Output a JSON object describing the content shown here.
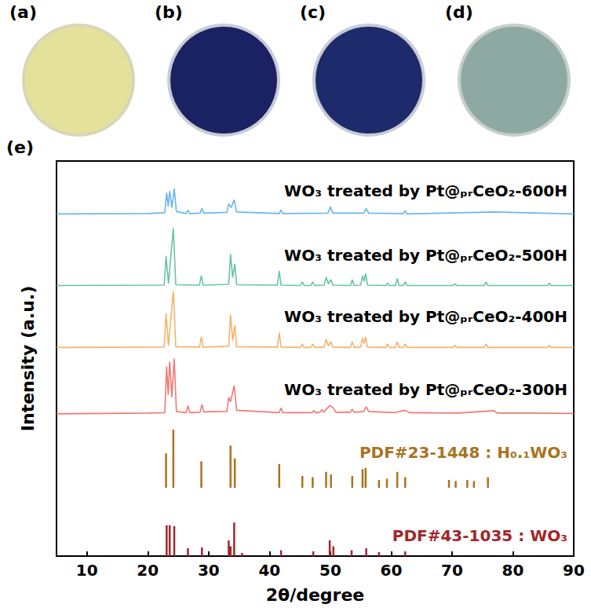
{
  "photos": [
    "(a)",
    "(b)",
    "(c)",
    "(d)"
  ],
  "chart_data": {
    "type": "line",
    "label": "(e)",
    "x_label": "2θ/degree",
    "y_label": "Intensity (a.u.)",
    "xlim": [
      5,
      90
    ],
    "xticks": [
      10,
      20,
      30,
      40,
      50,
      60,
      70,
      80,
      90
    ],
    "ylim": [
      0,
      100
    ],
    "tick_labels": "x",
    "grid": false,
    "series": [
      {
        "name": "WO₃ treated by Pt@ₚᵣCeO₂-600H",
        "type": "line",
        "color": "#6cb6ea",
        "x": [
          5,
          20,
          22.8,
          23.1,
          23.35,
          23.6,
          23.95,
          24.35,
          24.7,
          26.3,
          26.6,
          26.9,
          28.6,
          28.9,
          29.2,
          33.0,
          33.3,
          33.7,
          34.2,
          34.6,
          41.6,
          41.9,
          42.2,
          49.6,
          50.0,
          50.4,
          55.5,
          55.9,
          56.3,
          62.0,
          62.3,
          62.6,
          77,
          90
        ],
        "values": [
          86.6,
          86.7,
          86.9,
          92,
          88.5,
          92.4,
          88.2,
          93,
          87.2,
          86.7,
          87.6,
          86.7,
          86.8,
          88,
          86.8,
          87,
          89.2,
          88.2,
          90.2,
          87.1,
          86.7,
          87.6,
          86.7,
          86.8,
          88.4,
          86.8,
          86.8,
          88,
          86.8,
          86.7,
          87.4,
          86.6,
          87.1,
          86.6
        ]
      },
      {
        "name": "WO₃ treated by Pt@ₚᵣCeO₂-500H",
        "type": "line",
        "color": "#66c4a6",
        "x": [
          5,
          22.7,
          23.0,
          23.4,
          24.2,
          24.6,
          28.5,
          28.8,
          29.1,
          33.3,
          33.6,
          33.95,
          34.3,
          34.6,
          41.3,
          41.6,
          41.9,
          45.1,
          45.4,
          45.7,
          46.8,
          47.1,
          47.4,
          49.0,
          49.3,
          49.7,
          50.1,
          50.4,
          53.3,
          53.6,
          53.9,
          55.0,
          55.3,
          55.55,
          55.8,
          56.1,
          59.1,
          59.4,
          59.7,
          60.7,
          61.0,
          61.3,
          62.0,
          62.3,
          62.6,
          70.2,
          70.5,
          70.8,
          75.3,
          75.6,
          75.9,
          85.7,
          86,
          86.3,
          90
        ],
        "values": [
          68.5,
          68.6,
          76,
          69,
          83,
          68.7,
          68.6,
          71,
          68.6,
          68.8,
          76.5,
          70.5,
          74,
          68.7,
          68.6,
          72.2,
          68.6,
          68.5,
          69.4,
          68.5,
          68.5,
          69.4,
          68.5,
          68.6,
          70.6,
          68.9,
          70,
          68.6,
          68.5,
          70,
          68.5,
          68.6,
          71,
          69.5,
          71.6,
          68.6,
          68.5,
          69.1,
          68.5,
          68.5,
          70.3,
          68.5,
          68.5,
          69.4,
          68.5,
          68.5,
          68.9,
          68.5,
          68.5,
          69.4,
          68.5,
          68.5,
          69.1,
          68.5,
          68.5
        ]
      },
      {
        "name": "WO₃ treated by Pt@ₚᵣCeO₂-400H",
        "type": "line",
        "color": "#f6b26b",
        "x": [
          5,
          22.7,
          23.0,
          23.4,
          24.2,
          24.6,
          28.5,
          28.8,
          29.1,
          33.3,
          33.6,
          33.95,
          34.3,
          34.6,
          41.3,
          41.6,
          41.9,
          45.1,
          45.4,
          45.7,
          46.8,
          47.1,
          47.4,
          49.0,
          49.3,
          49.7,
          50.1,
          50.4,
          53.3,
          53.6,
          53.9,
          55.0,
          55.3,
          55.55,
          55.8,
          56.1,
          59.1,
          59.4,
          59.7,
          60.7,
          61.0,
          61.3,
          62.0,
          62.3,
          62.6,
          70.2,
          70.5,
          70.8,
          75.3,
          75.6,
          75.9,
          85.7,
          86,
          86.3,
          90
        ],
        "values": [
          52.8,
          52.9,
          61.4,
          53.3,
          67,
          53,
          52.9,
          55.5,
          52.9,
          53.1,
          61.1,
          54.5,
          58.4,
          53,
          52.9,
          56.6,
          52.9,
          52.8,
          53.7,
          52.8,
          52.8,
          53.7,
          52.8,
          52.9,
          54.9,
          53.2,
          54.3,
          52.9,
          52.8,
          54.3,
          52.8,
          52.9,
          55.2,
          53.8,
          55.5,
          52.9,
          52.8,
          53.7,
          52.8,
          52.8,
          54.3,
          52.8,
          52.8,
          53.7,
          52.8,
          52.8,
          53.4,
          52.8,
          52.8,
          53.7,
          52.8,
          52.8,
          53.4,
          52.8,
          52.8
        ]
      },
      {
        "name": "WO₃ treated by Pt@ₚᵣCeO₂-300H",
        "type": "line",
        "color": "#f07b73",
        "x": [
          5,
          20,
          22.8,
          23.1,
          23.35,
          23.6,
          23.95,
          24.35,
          24.7,
          26.3,
          26.6,
          26.9,
          28.6,
          28.9,
          29.2,
          33.0,
          33.3,
          33.6,
          34.2,
          34.6,
          41.6,
          41.9,
          42.2,
          47.0,
          47.3,
          47.6,
          48.3,
          48.6,
          48.9,
          49.9,
          50.5,
          50.9,
          53.3,
          53.6,
          53.9,
          55.5,
          55.9,
          56.3,
          60.5,
          62.3,
          63,
          71,
          76.9,
          77.4,
          82,
          90
        ],
        "values": [
          36,
          36.2,
          36.3,
          48,
          40.8,
          49.2,
          40.2,
          50,
          36.6,
          36.3,
          38.1,
          36.3,
          36.4,
          38.4,
          36.5,
          36.6,
          40.2,
          39,
          43.2,
          36.9,
          36.3,
          37.5,
          36.3,
          36.3,
          36.9,
          36.3,
          36.4,
          37.1,
          36.4,
          38.1,
          37.5,
          36.4,
          36.4,
          37.2,
          36.4,
          36.6,
          37.8,
          36.6,
          36.3,
          36.9,
          36.3,
          36.2,
          36.8,
          36.2,
          36.2,
          36.1
        ]
      },
      {
        "name": "PDF#23-1448 : H₀.₁WO₃",
        "type": "stick",
        "color": "#a8741f",
        "baseline": 17.3,
        "x": [
          23.0,
          24.2,
          28.8,
          33.6,
          34.3,
          41.6,
          45.4,
          47.1,
          49.3,
          50.1,
          53.6,
          55.3,
          55.8,
          58.0,
          59.3,
          61.0,
          62.3,
          69.5,
          70.6,
          72.5,
          73.6,
          75.9
        ],
        "values": [
          26,
          32,
          24,
          28,
          24.7,
          23.3,
          20.3,
          20,
          21.3,
          20.7,
          20.3,
          22,
          22.3,
          19.3,
          19.6,
          21.3,
          20,
          19.3,
          19,
          19.3,
          19,
          20
        ]
      },
      {
        "name": "PDF#43-1035 : WO₃",
        "type": "stick",
        "color": "#a3262a",
        "baseline": 0,
        "x": [
          23.1,
          23.6,
          24.35,
          26.6,
          28.9,
          33.3,
          33.6,
          34.2,
          35.5,
          41.9,
          47.2,
          49.9,
          50.5,
          53.5,
          55.9,
          58.0,
          62.3
        ],
        "values": [
          7.8,
          7.8,
          7.6,
          2,
          2.2,
          4,
          2.5,
          8.5,
          0.8,
          1.5,
          1.2,
          4,
          2.5,
          1.5,
          2,
          1,
          1.2
        ]
      }
    ]
  }
}
